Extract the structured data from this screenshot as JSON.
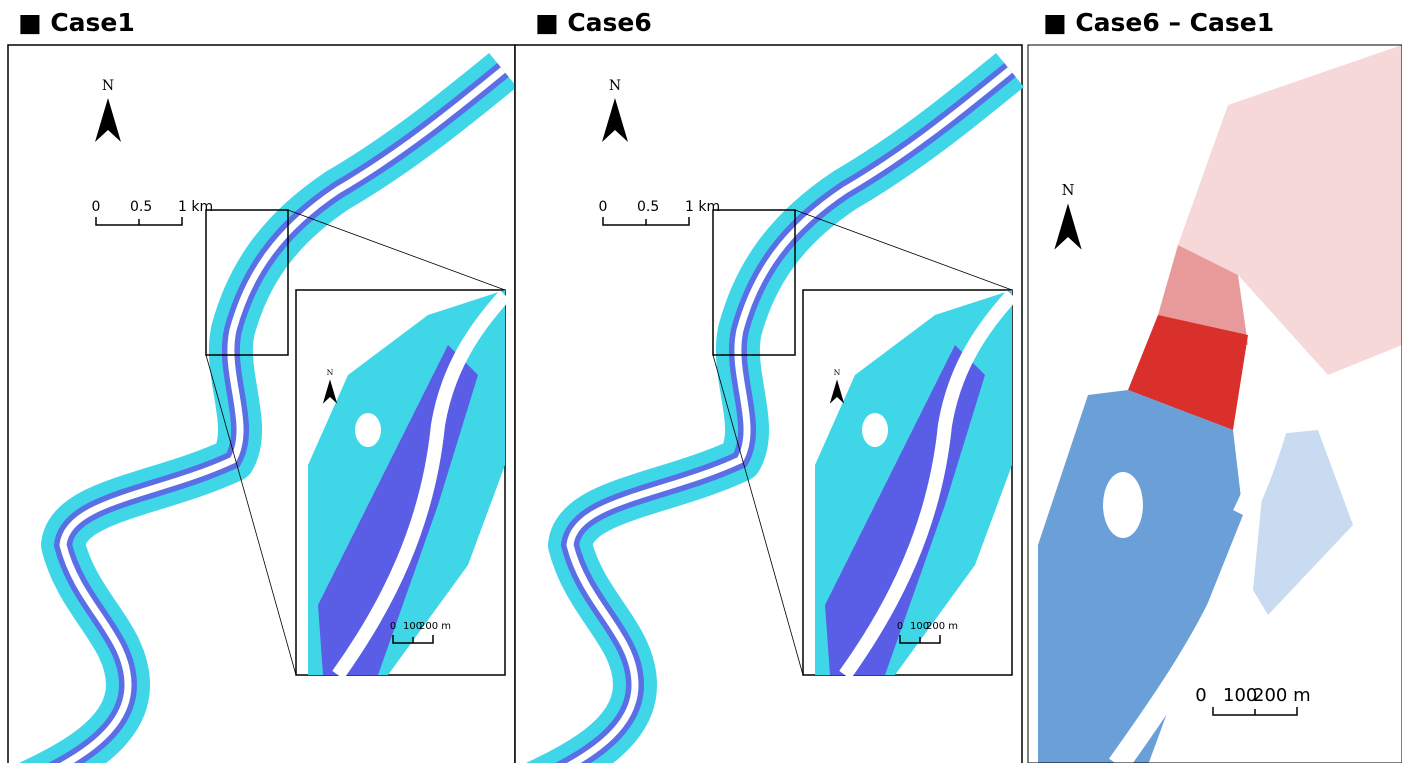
{
  "panels": [
    {
      "title": "■ Case1",
      "north": "N",
      "scale": [
        "0",
        "0.5",
        "1 km"
      ],
      "inset": {
        "north": "N",
        "scale": [
          "0",
          "100",
          "200 m"
        ]
      }
    },
    {
      "title": "■ Case6",
      "north": "N",
      "scale": [
        "0",
        "0.5",
        "1 km"
      ],
      "inset": {
        "north": "N",
        "scale": [
          "0",
          "100",
          "200 m"
        ]
      }
    },
    {
      "title": "■ Case6 – Case1",
      "north": "N",
      "scale": [
        "0",
        "100",
        "200 m"
      ]
    }
  ]
}
